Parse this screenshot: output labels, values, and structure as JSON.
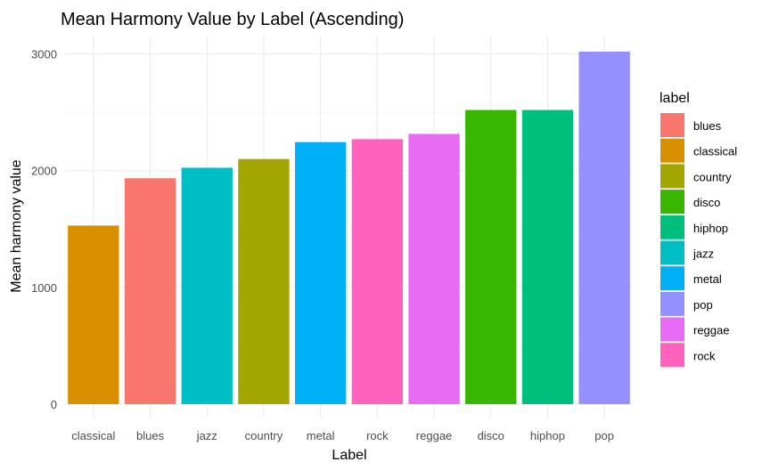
{
  "chart_data": {
    "type": "bar",
    "title": "Mean Harmony Value by Label (Ascending)",
    "xlabel": "Label",
    "ylabel": "Mean harmony value",
    "categories": [
      "classical",
      "blues",
      "jazz",
      "country",
      "metal",
      "rock",
      "reggae",
      "disco",
      "hiphop",
      "pop"
    ],
    "values": [
      1530,
      1935,
      2025,
      2100,
      2245,
      2270,
      2315,
      2520,
      2520,
      3020
    ],
    "bar_colors": [
      "#D89000",
      "#F8766D",
      "#00BFC4",
      "#A3A500",
      "#00B0F6",
      "#FF62BC",
      "#E76BF3",
      "#39B600",
      "#00BF7D",
      "#9590FF"
    ],
    "ylim": [
      0,
      3020
    ],
    "yticks": [
      0,
      1000,
      2000,
      3000
    ],
    "grid": true,
    "legend": {
      "title": "label",
      "placement": "right",
      "entries": [
        {
          "label": "blues",
          "color": "#F8766D"
        },
        {
          "label": "classical",
          "color": "#D89000"
        },
        {
          "label": "country",
          "color": "#A3A500"
        },
        {
          "label": "disco",
          "color": "#39B600"
        },
        {
          "label": "hiphop",
          "color": "#00BF7D"
        },
        {
          "label": "jazz",
          "color": "#00BFC4"
        },
        {
          "label": "metal",
          "color": "#00B0F6"
        },
        {
          "label": "pop",
          "color": "#9590FF"
        },
        {
          "label": "reggae",
          "color": "#E76BF3"
        },
        {
          "label": "rock",
          "color": "#FF62BC"
        }
      ]
    }
  }
}
